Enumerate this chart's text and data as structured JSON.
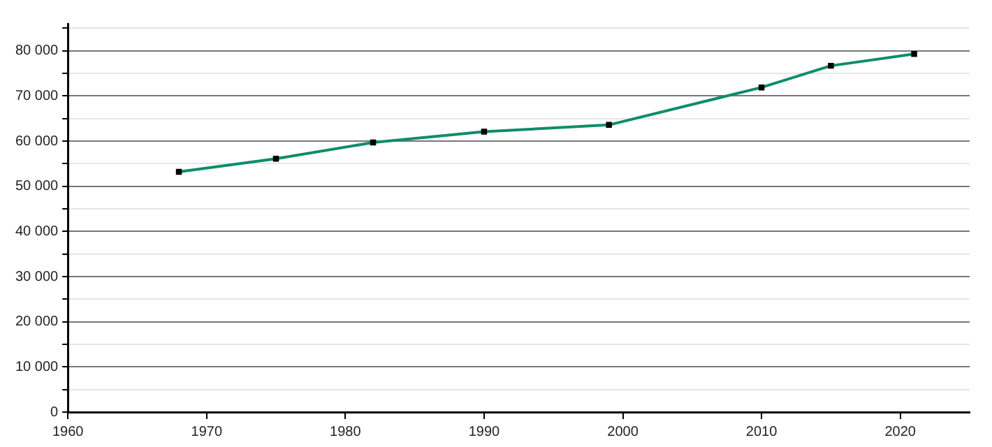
{
  "chart_data": {
    "type": "line",
    "x": [
      1968,
      1975,
      1982,
      1990,
      1999,
      2010,
      2015,
      2021
    ],
    "series": [
      {
        "color": "#0f8c6c",
        "values": [
          53200,
          56100,
          59700,
          62100,
          63600,
          71900,
          76700,
          79300
        ]
      }
    ],
    "xlim": [
      1960,
      2025
    ],
    "xticks": [
      1960,
      1970,
      1980,
      1990,
      2000,
      2010,
      2020
    ],
    "ylim": [
      0,
      86000
    ],
    "yticks": [
      {
        "value": 0,
        "label": "0"
      },
      {
        "value": 5000,
        "label": null
      },
      {
        "value": 10000,
        "label": "10 000"
      },
      {
        "value": 15000,
        "label": null
      },
      {
        "value": 20000,
        "label": "20 000"
      },
      {
        "value": 25000,
        "label": null
      },
      {
        "value": 30000,
        "label": "30 000"
      },
      {
        "value": 35000,
        "label": null
      },
      {
        "value": 40000,
        "label": "40 000"
      },
      {
        "value": 45000,
        "label": null
      },
      {
        "value": 50000,
        "label": "50 000"
      },
      {
        "value": 55000,
        "label": null
      },
      {
        "value": 60000,
        "label": "60 000"
      },
      {
        "value": 65000,
        "label": null
      },
      {
        "value": 70000,
        "label": "70 000"
      },
      {
        "value": 75000,
        "label": null
      },
      {
        "value": 80000,
        "label": "80 000"
      },
      {
        "value": 85000,
        "label": null
      }
    ],
    "grid": "y",
    "marker": "square",
    "legend": false
  }
}
